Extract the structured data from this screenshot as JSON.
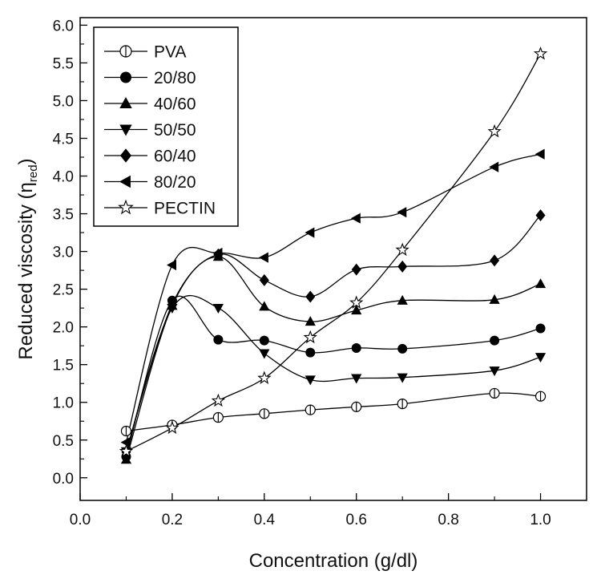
{
  "chart_data": {
    "type": "line",
    "xlabel": "Concentration (g/dl)",
    "ylabel": {
      "main": "Reduced viscosity (η",
      "sub": "red",
      "close": ")"
    },
    "xlim": [
      0.0,
      1.1
    ],
    "ylim": [
      -0.3,
      6.1
    ],
    "xticks": [
      "0.0",
      "0.2",
      "0.4",
      "0.6",
      "0.8",
      "1.0"
    ],
    "yticks": [
      "0.0",
      "0.5",
      "1.0",
      "1.5",
      "2.0",
      "2.5",
      "3.0",
      "3.5",
      "4.0",
      "4.5",
      "5.0",
      "5.5",
      "6.0"
    ],
    "grid": false,
    "legend_position": "top-left",
    "series": [
      {
        "name": "PVA",
        "marker": "circle-half",
        "x": [
          0.1,
          0.2,
          0.3,
          0.4,
          0.5,
          0.6,
          0.7,
          0.9,
          1.0
        ],
        "y": [
          0.62,
          0.7,
          0.8,
          0.85,
          0.9,
          0.94,
          0.98,
          1.12,
          1.08
        ]
      },
      {
        "name": "20/80",
        "marker": "circle-filled",
        "x": [
          0.1,
          0.2,
          0.3,
          0.4,
          0.5,
          0.6,
          0.7,
          0.9,
          1.0
        ],
        "y": [
          0.28,
          2.35,
          1.83,
          1.82,
          1.66,
          1.72,
          1.71,
          1.82,
          1.98
        ]
      },
      {
        "name": "40/60",
        "marker": "triangle-up",
        "x": [
          0.1,
          0.2,
          0.3,
          0.4,
          0.5,
          0.6,
          0.7,
          0.9,
          1.0
        ],
        "y": [
          0.24,
          2.28,
          2.93,
          2.27,
          2.07,
          2.22,
          2.35,
          2.36,
          2.57
        ]
      },
      {
        "name": "50/50",
        "marker": "triangle-down",
        "x": [
          0.1,
          0.2,
          0.3,
          0.4,
          0.5,
          0.6,
          0.7,
          0.9,
          1.0
        ],
        "y": [
          0.35,
          2.25,
          2.25,
          1.65,
          1.3,
          1.32,
          1.33,
          1.42,
          1.6
        ]
      },
      {
        "name": "60/40",
        "marker": "diamond",
        "x": [
          0.1,
          0.2,
          0.3,
          0.4,
          0.5,
          0.6,
          0.7,
          0.9,
          1.0
        ],
        "y": [
          0.34,
          2.3,
          2.96,
          2.62,
          2.4,
          2.76,
          2.8,
          2.88,
          3.48
        ]
      },
      {
        "name": "80/20",
        "marker": "triangle-left",
        "x": [
          0.1,
          0.2,
          0.3,
          0.4,
          0.5,
          0.6,
          0.7,
          0.9,
          1.0
        ],
        "y": [
          0.47,
          2.82,
          2.98,
          2.92,
          3.25,
          3.44,
          3.52,
          4.12,
          4.29
        ]
      },
      {
        "name": "PECTIN",
        "marker": "star-open",
        "x": [
          0.1,
          0.2,
          0.3,
          0.4,
          0.5,
          0.6,
          0.7,
          0.9,
          1.0
        ],
        "y": [
          0.35,
          0.66,
          1.02,
          1.32,
          1.86,
          2.32,
          3.02,
          4.59,
          5.62
        ]
      }
    ]
  }
}
